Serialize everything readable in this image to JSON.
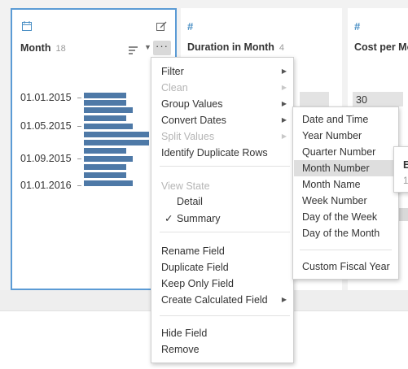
{
  "colors": {
    "accent": "#5b9bd5",
    "bar": "#4e79a7",
    "type_icon": "#4a8fc4"
  },
  "cards": {
    "month": {
      "icon": "calendar-icon",
      "title": "Month",
      "count": "18",
      "labels": [
        "01.01.2015",
        "01.05.2015",
        "01.09.2015",
        "01.01.2016"
      ]
    },
    "duration": {
      "icon": "number-icon",
      "icon_glyph": "#",
      "title": "Duration in Month",
      "count": "4"
    },
    "cost": {
      "icon": "number-icon",
      "icon_glyph": "#",
      "title": "Cost per Mo",
      "value": "30"
    }
  },
  "menu": {
    "filter": "Filter",
    "clean": "Clean",
    "group_values": "Group Values",
    "convert_dates": "Convert Dates",
    "split_values": "Split Values",
    "identify_duplicates": "Identify Duplicate Rows",
    "view_state": "View State",
    "detail": "Detail",
    "summary": "Summary",
    "rename_field": "Rename Field",
    "duplicate_field": "Duplicate Field",
    "keep_only_field": "Keep Only Field",
    "create_calculated_field": "Create Calculated Field",
    "hide_field": "Hide Field",
    "remove": "Remove"
  },
  "submenu": {
    "date_and_time": "Date and Time",
    "year_number": "Year Number",
    "quarter_number": "Quarter Number",
    "month_number": "Month Number",
    "month_name": "Month Name",
    "week_number": "Week Number",
    "day_of_week": "Day of the Week",
    "day_of_month": "Day of the Month",
    "custom_fiscal_year": "Custom Fiscal Year"
  },
  "tooltip": {
    "title": "E",
    "sub": "1"
  }
}
